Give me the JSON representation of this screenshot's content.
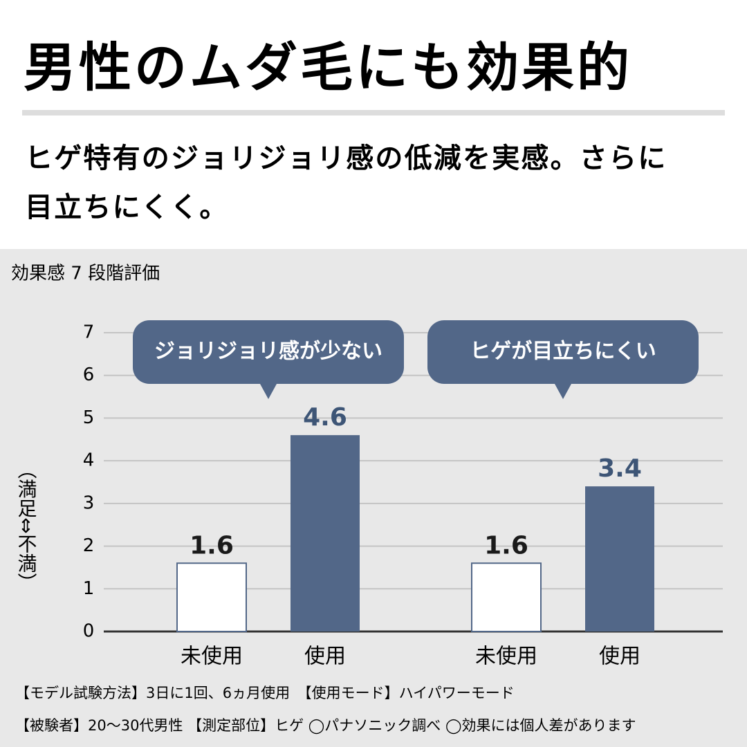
{
  "header": {
    "title": "男性のムダ毛にも効果的",
    "subtitle_lines": [
      "ヒゲ特有のジョリジョリ感の低減を実感。さらに",
      "目立ちにくく。"
    ]
  },
  "chart_data": {
    "type": "bar",
    "title": "効果感 7 段階評価",
    "y_label": "（満足⇔不満）",
    "categories": [
      "ジョリジョリ感が少ない",
      "ヒゲが目立ちにくい"
    ],
    "series": [
      {
        "name": "未使用",
        "color": "#ffffff",
        "values": [
          1.6,
          1.6
        ]
      },
      {
        "name": "使用",
        "color": "#526788",
        "values": [
          4.6,
          3.4
        ]
      }
    ],
    "ylim": [
      0,
      7
    ],
    "yticks": [
      0,
      1,
      2,
      3,
      4,
      5,
      6,
      7
    ],
    "grid": true
  },
  "footnotes": [
    "【モデル試験方法】3日に1回、6ヵ月使用　【使用モード】ハイパワーモード",
    "【被験者】20〜30代男性 【測定部位】ヒゲ ◯パナソニック調べ ◯効果には個人差があります"
  ]
}
